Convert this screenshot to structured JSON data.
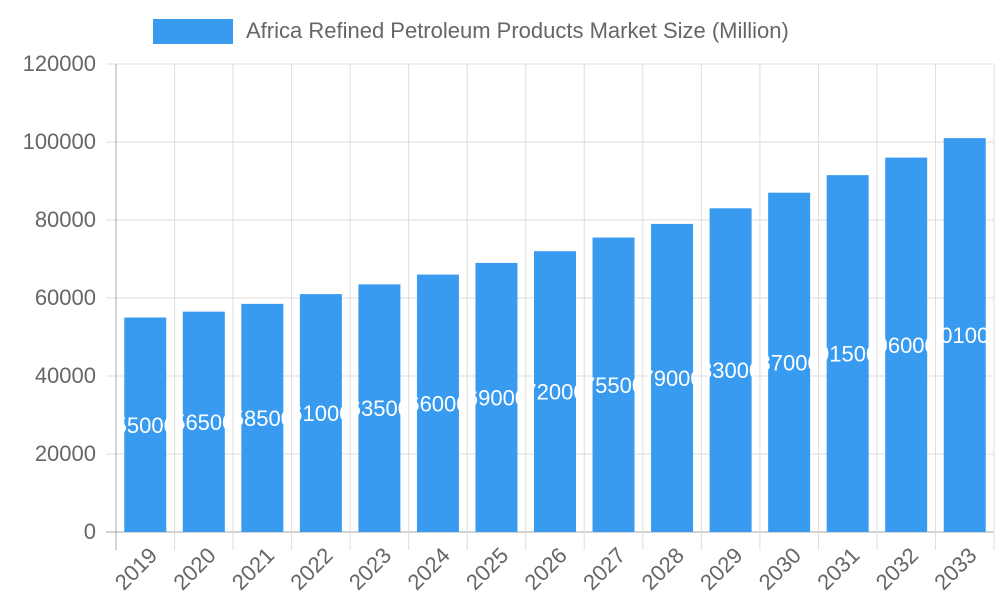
{
  "chart_data": {
    "type": "bar",
    "title": "",
    "xlabel": "",
    "ylabel": "",
    "categories": [
      "2019",
      "2020",
      "2021",
      "2022",
      "2023",
      "2024",
      "2025",
      "2026",
      "2027",
      "2028",
      "2029",
      "2030",
      "2031",
      "2032",
      "2033"
    ],
    "series": [
      {
        "name": "Africa Refined Petroleum Products Market Size (Million)",
        "values": [
          55000,
          56500,
          58500,
          61000,
          63500,
          66000,
          69000,
          72000,
          75500,
          79000,
          83000,
          87000,
          91500,
          96000,
          101000
        ],
        "color": "#399bf0"
      }
    ],
    "ylim": [
      0,
      120000
    ],
    "yticks": [
      "0",
      "20000",
      "40000",
      "60000",
      "80000",
      "100000",
      "120000"
    ],
    "grid": true,
    "legend": "top",
    "data_labels": true
  }
}
